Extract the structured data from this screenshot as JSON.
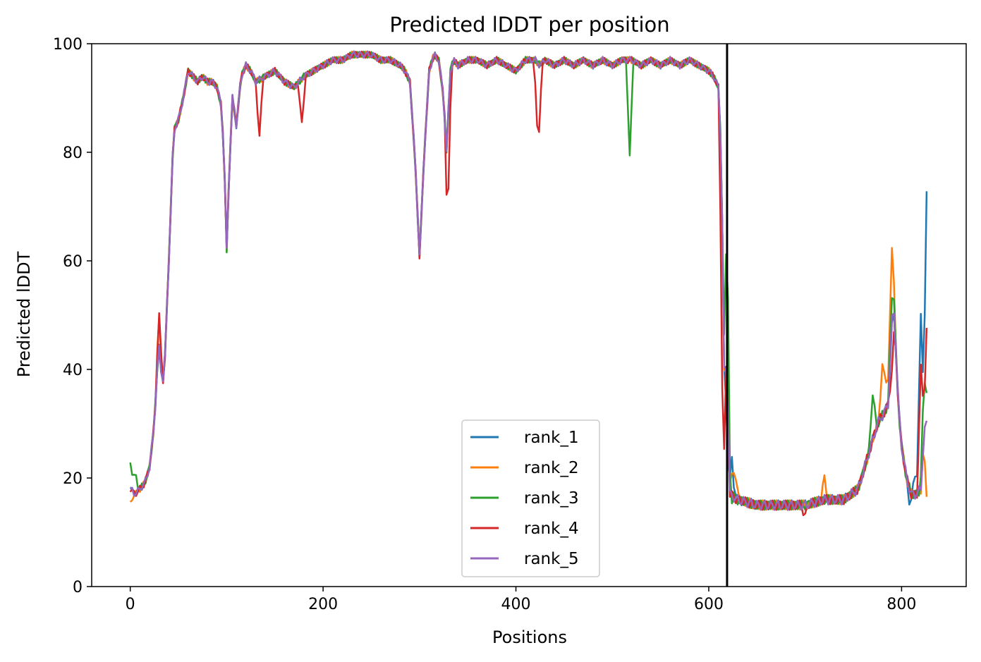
{
  "chart_data": {
    "type": "line",
    "title": "Predicted lDDT per position",
    "xlabel": "Positions",
    "ylabel": "Predicted lDDT",
    "xlim": [
      -40,
      867
    ],
    "ylim": [
      0,
      100
    ],
    "xticks": [
      0,
      200,
      400,
      600,
      800
    ],
    "yticks": [
      0,
      20,
      40,
      60,
      80,
      100
    ],
    "grid": false,
    "legend_position": "lower-center",
    "chain_break_x": 619,
    "line_colors": {
      "rank_1": "#1f77b4",
      "rank_2": "#ff7f0e",
      "rank_3": "#2ca02c",
      "rank_4": "#d62728",
      "rank_5": "#9467bd"
    },
    "base_profile": {
      "x": [
        0,
        5,
        10,
        15,
        20,
        25,
        28,
        30,
        33,
        35,
        40,
        45,
        50,
        55,
        60,
        65,
        70,
        75,
        80,
        85,
        90,
        95,
        98,
        100,
        103,
        106,
        110,
        115,
        120,
        125,
        130,
        140,
        150,
        160,
        170,
        180,
        190,
        200,
        210,
        220,
        230,
        240,
        250,
        260,
        270,
        280,
        285,
        290,
        295,
        300,
        305,
        310,
        315,
        320,
        325,
        328,
        332,
        335,
        340,
        350,
        360,
        370,
        380,
        390,
        400,
        410,
        420,
        425,
        430,
        440,
        450,
        460,
        470,
        480,
        490,
        500,
        510,
        520,
        530,
        540,
        550,
        560,
        570,
        580,
        590,
        600,
        605,
        610,
        613,
        616,
        619,
        622,
        630,
        650,
        680,
        700,
        720,
        740,
        755,
        765,
        775,
        785,
        790,
        793,
        797,
        800,
        805,
        810,
        815,
        820,
        825
      ],
      "y": [
        18,
        17,
        18,
        19,
        22,
        30,
        40,
        44,
        38,
        38,
        60,
        84,
        86,
        90,
        95,
        94,
        93,
        94,
        93,
        93,
        92,
        88,
        75,
        62,
        78,
        90,
        85,
        94,
        96,
        95,
        93,
        94,
        95,
        93,
        92,
        94,
        95,
        96,
        97,
        97,
        98,
        98,
        98,
        97,
        97,
        96,
        95,
        93,
        80,
        61,
        80,
        95,
        98,
        97,
        90,
        80,
        95,
        97,
        96,
        97,
        97,
        96,
        97,
        96,
        95,
        97,
        97,
        96,
        97,
        96,
        97,
        96,
        97,
        96,
        97,
        96,
        97,
        97,
        96,
        97,
        96,
        97,
        96,
        97,
        96,
        95,
        94,
        92,
        80,
        40,
        40,
        17,
        16,
        15,
        15,
        15,
        16,
        16,
        18,
        24,
        30,
        33,
        36,
        48,
        32,
        26,
        20,
        17,
        17,
        18,
        34
      ]
    },
    "series": [
      {
        "name": "rank_1",
        "overrides": [
          {
            "x": 620,
            "y": 20
          },
          {
            "x": 622,
            "y": 25
          },
          {
            "x": 625,
            "y": 20
          },
          {
            "x": 790,
            "y": 48
          },
          {
            "x": 808,
            "y": 16
          },
          {
            "x": 815,
            "y": 22
          },
          {
            "x": 820,
            "y": 50
          },
          {
            "x": 826,
            "y": 72
          }
        ]
      },
      {
        "name": "rank_2",
        "overrides": [
          {
            "x": 0,
            "y": 15
          },
          {
            "x": 30,
            "y": 50
          },
          {
            "x": 625,
            "y": 23
          },
          {
            "x": 630,
            "y": 18
          },
          {
            "x": 720,
            "y": 20
          },
          {
            "x": 780,
            "y": 41
          },
          {
            "x": 785,
            "y": 40
          },
          {
            "x": 790,
            "y": 62
          },
          {
            "x": 795,
            "y": 40
          },
          {
            "x": 820,
            "y": 18
          },
          {
            "x": 826,
            "y": 17
          }
        ]
      },
      {
        "name": "rank_3",
        "overrides": [
          {
            "x": 0,
            "y": 23
          },
          {
            "x": 5,
            "y": 21
          },
          {
            "x": 518,
            "y": 80
          },
          {
            "x": 619,
            "y": 68
          },
          {
            "x": 622,
            "y": 15
          },
          {
            "x": 770,
            "y": 36
          },
          {
            "x": 790,
            "y": 54
          },
          {
            "x": 823,
            "y": 37
          },
          {
            "x": 826,
            "y": 34
          }
        ]
      },
      {
        "name": "rank_4",
        "overrides": [
          {
            "x": 30,
            "y": 50
          },
          {
            "x": 134,
            "y": 83
          },
          {
            "x": 178,
            "y": 85
          },
          {
            "x": 330,
            "y": 73
          },
          {
            "x": 423,
            "y": 80
          },
          {
            "x": 614,
            "y": 37
          },
          {
            "x": 700,
            "y": 13
          },
          {
            "x": 775,
            "y": 30
          },
          {
            "x": 790,
            "y": 40
          },
          {
            "x": 820,
            "y": 40
          },
          {
            "x": 826,
            "y": 47
          }
        ]
      },
      {
        "name": "rank_5",
        "overrides": [
          {
            "x": 790,
            "y": 49
          },
          {
            "x": 826,
            "y": 30
          }
        ]
      }
    ]
  }
}
